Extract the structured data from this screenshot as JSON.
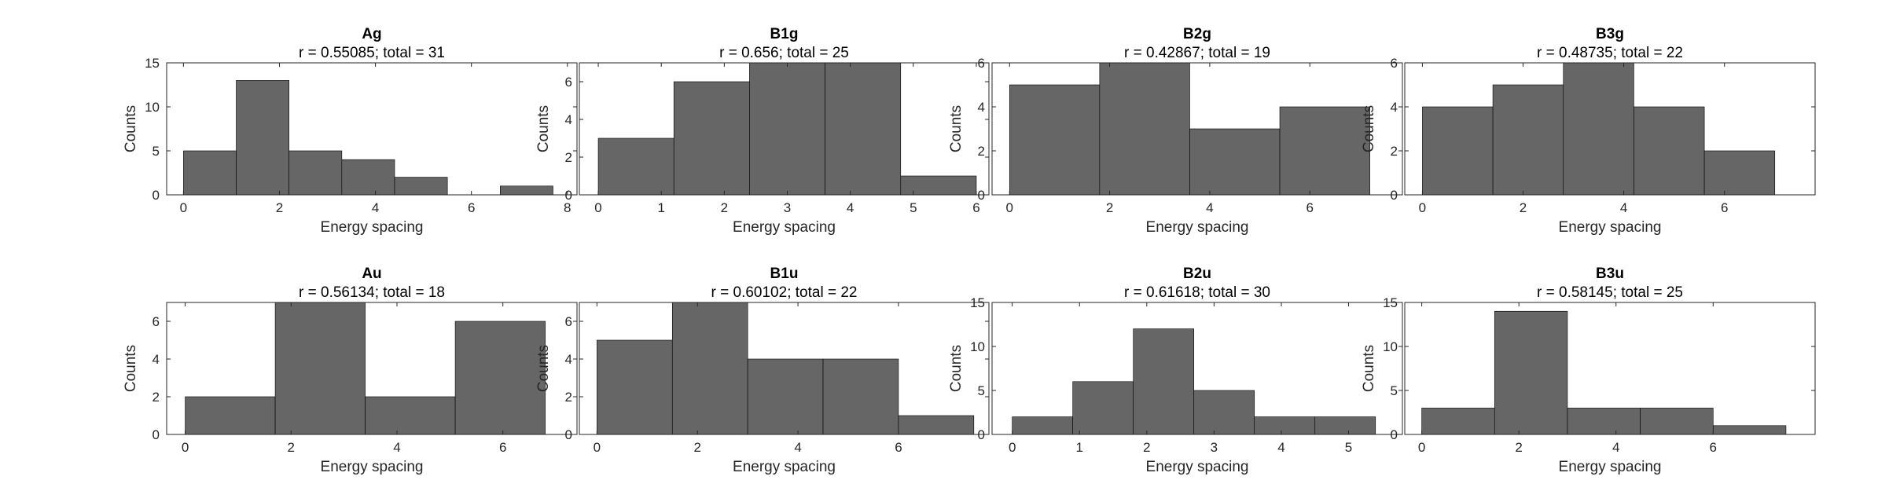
{
  "chart_data": [
    {
      "type": "bar",
      "title": "Ag",
      "subtitle": "r = 0.55085; total = 31",
      "xlabel": "Energy spacing",
      "ylabel": "Counts",
      "xlim": [
        -0.35,
        8.2
      ],
      "ylim": [
        0,
        15
      ],
      "xticks": [
        "0",
        "2",
        "4",
        "6",
        "8"
      ],
      "xtick_values": [
        0,
        2,
        4,
        6,
        8
      ],
      "yticks": [
        "0",
        "5",
        "10",
        "15"
      ],
      "ytick_values": [
        0,
        5,
        10,
        15
      ],
      "bin_edges": [
        0,
        1.1,
        2.2,
        3.3,
        4.4,
        5.5,
        6.6,
        7.7
      ],
      "values": [
        5,
        13,
        5,
        4,
        2,
        0,
        1
      ],
      "color": "#666666"
    },
    {
      "type": "bar",
      "title": "B1g",
      "subtitle": "r = 0.656; total = 25",
      "xlabel": "Energy spacing",
      "ylabel": "Counts",
      "xlim": [
        -0.3,
        6.2
      ],
      "ylim": [
        0,
        7
      ],
      "xticks": [
        "0",
        "1",
        "2",
        "3",
        "4",
        "5",
        "6"
      ],
      "xtick_values": [
        0,
        1,
        2,
        3,
        4,
        5,
        6
      ],
      "yticks": [
        "0",
        "2",
        "4",
        "6"
      ],
      "ytick_values": [
        0,
        2,
        4,
        6
      ],
      "bin_edges": [
        0,
        1.2,
        2.4,
        3.6,
        4.8,
        6.0
      ],
      "values": [
        3,
        6,
        7,
        7,
        1
      ],
      "color": "#666666"
    },
    {
      "type": "bar",
      "title": "B2g",
      "subtitle": "r = 0.42867; total = 19",
      "xlabel": "Energy spacing",
      "ylabel": "Counts",
      "xlim": [
        -0.35,
        7.85
      ],
      "ylim": [
        0,
        6
      ],
      "xticks": [
        "0",
        "2",
        "4",
        "6"
      ],
      "xtick_values": [
        0,
        2,
        4,
        6
      ],
      "yticks": [
        "0",
        "2",
        "4",
        "6"
      ],
      "ytick_values": [
        0,
        2,
        4,
        6
      ],
      "bin_edges": [
        0,
        1.8,
        3.6,
        5.4,
        7.2
      ],
      "values": [
        5,
        6,
        3,
        4
      ],
      "color": "#666666"
    },
    {
      "type": "bar",
      "title": "B3g",
      "subtitle": "r = 0.48735; total = 22",
      "xlabel": "Energy spacing",
      "ylabel": "Counts",
      "xlim": [
        -0.35,
        7.8
      ],
      "ylim": [
        0,
        6
      ],
      "xticks": [
        "0",
        "2",
        "4",
        "6"
      ],
      "xtick_values": [
        0,
        2,
        4,
        6
      ],
      "yticks": [
        "0",
        "2",
        "4",
        "6"
      ],
      "ytick_values": [
        0,
        2,
        4,
        6
      ],
      "bin_edges": [
        0,
        1.4,
        2.8,
        4.2,
        5.6,
        7.0
      ],
      "values": [
        4,
        5,
        6,
        4,
        2
      ],
      "color": "#666666"
    },
    {
      "type": "bar",
      "title": "Au",
      "subtitle": "r = 0.56134; total = 18",
      "xlabel": "Energy spacing",
      "ylabel": "Counts",
      "xlim": [
        -0.35,
        7.4
      ],
      "ylim": [
        0,
        7
      ],
      "xticks": [
        "0",
        "2",
        "4",
        "6"
      ],
      "xtick_values": [
        0,
        2,
        4,
        6
      ],
      "yticks": [
        "0",
        "2",
        "4",
        "6"
      ],
      "ytick_values": [
        0,
        2,
        4,
        6
      ],
      "bin_edges": [
        0,
        1.7,
        3.4,
        5.1,
        6.8
      ],
      "values": [
        2,
        7,
        2,
        6
      ],
      "color": "#666666"
    },
    {
      "type": "bar",
      "title": "B1u",
      "subtitle": "r = 0.60102; total = 22",
      "xlabel": "Energy spacing",
      "ylabel": "Counts",
      "xlim": [
        -0.35,
        7.8
      ],
      "ylim": [
        0,
        7
      ],
      "xticks": [
        "0",
        "2",
        "4",
        "6"
      ],
      "xtick_values": [
        0,
        2,
        4,
        6
      ],
      "yticks": [
        "0",
        "2",
        "4",
        "6"
      ],
      "ytick_values": [
        0,
        2,
        4,
        6
      ],
      "bin_edges": [
        0,
        1.5,
        3.0,
        4.5,
        6.0,
        7.5
      ],
      "values": [
        5,
        7,
        4,
        4,
        1
      ],
      "color": "#666666"
    },
    {
      "type": "bar",
      "title": "B2u",
      "subtitle": "r = 0.61618; total = 30",
      "xlabel": "Energy spacing",
      "ylabel": "Counts",
      "xlim": [
        -0.3,
        5.8
      ],
      "ylim": [
        0,
        15
      ],
      "xticks": [
        "0",
        "1",
        "2",
        "3",
        "4",
        "5"
      ],
      "xtick_values": [
        0,
        1,
        2,
        3,
        4,
        5
      ],
      "yticks": [
        "0",
        "5",
        "10",
        "15"
      ],
      "ytick_values": [
        0,
        5,
        10,
        15
      ],
      "bin_edges": [
        0,
        0.9,
        1.8,
        2.7,
        3.6,
        4.5,
        5.4
      ],
      "values": [
        2,
        6,
        12,
        5,
        2,
        2
      ],
      "color": "#666666"
    },
    {
      "type": "bar",
      "title": "B3u",
      "subtitle": "r = 0.58145; total = 25",
      "xlabel": "Energy spacing",
      "ylabel": "Counts",
      "xlim": [
        -0.35,
        8.1
      ],
      "ylim": [
        0,
        15
      ],
      "xticks": [
        "0",
        "2",
        "4",
        "6"
      ],
      "xtick_values": [
        0,
        2,
        4,
        6
      ],
      "yticks": [
        "0",
        "5",
        "10",
        "15"
      ],
      "ytick_values": [
        0,
        5,
        10,
        15
      ],
      "bin_edges": [
        0,
        1.5,
        3.0,
        4.5,
        6.0,
        7.5
      ],
      "values": [
        3,
        14,
        3,
        3,
        1
      ],
      "color": "#666666"
    }
  ]
}
